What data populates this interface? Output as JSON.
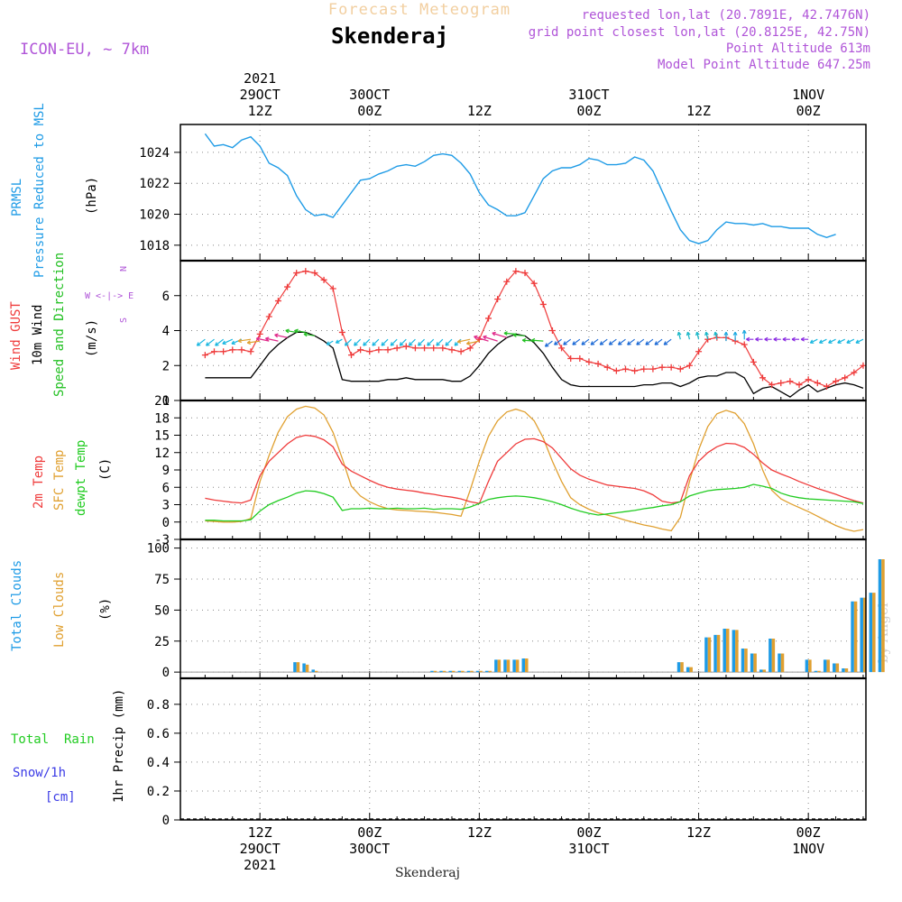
{
  "header": {
    "title": "Forecast Meteogram",
    "location": "Skenderaj",
    "model": "ICON-EU, ~ 7km",
    "requested": "requested lon,lat (20.7891E, 42.7476N)",
    "gridpoint": "grid point closest lon,lat (20.8125E, 42.75N)",
    "point_alt": "Point Altitude 613m",
    "model_alt": "Model Point Altitude 647.25m",
    "footer_location": "Skenderaj",
    "credit": "by Angel"
  },
  "colors": {
    "pressure": "#1e9be6",
    "gust": "#ef3b3b",
    "wind": "#000000",
    "dir": "#22c022",
    "temp": "#ef3b3b",
    "sfc": "#e0a030",
    "dew": "#22cc22",
    "total_cloud": "#1e9be6",
    "low_cloud": "#e0a030",
    "purple": "#b055d8",
    "rain": "#22cc22",
    "snow": "#3b3be6"
  },
  "time_axis": {
    "top_labels": [
      {
        "t": 6,
        "lines": [
          "2021",
          "29OCT",
          "12Z"
        ]
      },
      {
        "t": 18,
        "lines": [
          "30OCT",
          "00Z"
        ]
      },
      {
        "t": 30,
        "lines": [
          "12Z"
        ]
      },
      {
        "t": 42,
        "lines": [
          "31OCT",
          "00Z"
        ]
      },
      {
        "t": 54,
        "lines": [
          "12Z"
        ]
      },
      {
        "t": 66,
        "lines": [
          "1NOV",
          "00Z"
        ]
      }
    ],
    "bottom_labels": [
      {
        "t": 6,
        "lines": [
          "12Z",
          "29OCT",
          "2021"
        ]
      },
      {
        "t": 18,
        "lines": [
          "00Z",
          "30OCT"
        ]
      },
      {
        "t": 30,
        "lines": [
          "12Z"
        ]
      },
      {
        "t": 42,
        "lines": [
          "00Z",
          "31OCT"
        ]
      },
      {
        "t": 54,
        "lines": [
          "12Z"
        ]
      },
      {
        "t": 66,
        "lines": [
          "00Z",
          "1NOV"
        ]
      }
    ],
    "grid_hours": [
      6,
      18,
      30,
      42,
      54,
      66
    ]
  },
  "labels": {
    "pressure": [
      "PRMSL",
      "Pressure Reduced to MSL"
    ],
    "pressure_unit": "(hPa)",
    "gust": "Wind GUST",
    "wind": "10m Wind",
    "dir": "Speed and Direction",
    "wind_unit": "(m/s)",
    "compass": [
      "N",
      "W <-|-> E",
      "S"
    ],
    "temp": "2m Temp",
    "sfc": "SFC Temp",
    "dew": "dewpt Temp",
    "temp_unit": "(C)",
    "total_cloud": "Total Clouds",
    "low_cloud": "Low Clouds",
    "cloud_unit": "(%)",
    "rain_total": "Total  Rain",
    "snow": "Snow/1h",
    "snow_unit": "[cm]",
    "precip_unit": "1hr Precip (mm)"
  },
  "chart_data": [
    {
      "type": "line",
      "title": "PRMSL Pressure Reduced to MSL",
      "ylabel": "(hPa)",
      "ylim": [
        1017,
        1025.8
      ],
      "yticks": [
        1018,
        1020,
        1022,
        1024
      ],
      "t_start": 0,
      "t_step": 1,
      "series": [
        {
          "name": "PRMSL",
          "values": [
            1025.2,
            1024.4,
            1024.5,
            1024.3,
            1024.8,
            1025.0,
            1024.4,
            1023.3,
            1023.0,
            1022.5,
            1021.2,
            1020.3,
            1019.9,
            1020.0,
            1019.8,
            1020.6,
            1021.4,
            1022.2,
            1022.3,
            1022.6,
            1022.8,
            1023.1,
            1023.2,
            1023.1,
            1023.4,
            1023.8,
            1023.9,
            1023.8,
            1023.3,
            1022.6,
            1021.4,
            1020.6,
            1020.3,
            1019.9,
            1019.9,
            1020.1,
            1021.2,
            1022.3,
            1022.8,
            1023.0,
            1023.0,
            1023.2,
            1023.6,
            1023.5,
            1023.2,
            1023.2,
            1023.3,
            1023.7,
            1023.5,
            1022.8,
            1021.5,
            1020.2,
            1019.0,
            1018.3,
            1018.1,
            1018.3,
            1019.0,
            1019.5,
            1019.4,
            1019.4,
            1019.3,
            1019.4,
            1019.2,
            1019.2,
            1019.1,
            1019.1,
            1019.1,
            1018.7,
            1018.5,
            1018.7
          ]
        }
      ]
    },
    {
      "type": "line",
      "title": "Wind GUST / 10m Wind Speed and Direction",
      "ylabel": "(m/s)",
      "ylim": [
        0,
        8.0
      ],
      "yticks": [
        0,
        2,
        4,
        6
      ],
      "t_start": 0,
      "t_step": 1,
      "series": [
        {
          "name": "Wind GUST",
          "values": [
            2.6,
            2.8,
            2.8,
            2.9,
            2.9,
            2.8,
            3.8,
            4.8,
            5.7,
            6.5,
            7.3,
            7.4,
            7.3,
            6.9,
            6.4,
            3.9,
            2.6,
            2.9,
            2.8,
            2.9,
            2.9,
            3.0,
            3.1,
            3.0,
            3.0,
            3.0,
            3.0,
            2.9,
            2.8,
            3.0,
            3.5,
            4.7,
            5.8,
            6.8,
            7.4,
            7.3,
            6.7,
            5.5,
            4.0,
            3.0,
            2.4,
            2.4,
            2.2,
            2.1,
            1.9,
            1.7,
            1.8,
            1.7,
            1.8,
            1.8,
            1.9,
            1.9,
            1.8,
            2.0,
            2.8,
            3.5,
            3.6,
            3.6,
            3.4,
            3.2,
            2.2,
            1.3,
            0.9,
            1.0,
            1.1,
            0.9,
            1.2,
            1.0,
            0.8,
            1.1,
            1.3,
            1.6,
            2.0
          ]
        },
        {
          "name": "10m Wind",
          "values": [
            1.3,
            1.3,
            1.3,
            1.3,
            1.3,
            1.3,
            2.0,
            2.7,
            3.2,
            3.6,
            3.9,
            3.9,
            3.7,
            3.4,
            3.0,
            1.2,
            1.1,
            1.1,
            1.1,
            1.1,
            1.2,
            1.2,
            1.3,
            1.2,
            1.2,
            1.2,
            1.2,
            1.1,
            1.1,
            1.4,
            2.0,
            2.7,
            3.2,
            3.6,
            3.8,
            3.7,
            3.3,
            2.7,
            1.9,
            1.2,
            0.9,
            0.8,
            0.8,
            0.8,
            0.8,
            0.8,
            0.8,
            0.8,
            0.9,
            0.9,
            1.0,
            1.0,
            0.8,
            1.0,
            1.3,
            1.4,
            1.4,
            1.6,
            1.6,
            1.3,
            0.4,
            0.7,
            0.8,
            0.5,
            0.2,
            0.6,
            0.9,
            0.5,
            0.7,
            0.9,
            1.0,
            0.9,
            0.7
          ]
        }
      ]
    },
    {
      "type": "line",
      "title": "2m Temp / SFC Temp / dewpt Temp",
      "ylabel": "(C)",
      "ylim": [
        -3,
        21
      ],
      "yticks": [
        -3,
        0,
        3,
        6,
        9,
        12,
        15,
        18,
        21
      ],
      "t_start": 0,
      "t_step": 1,
      "series": [
        {
          "name": "2m Temp",
          "values": [
            4.1,
            3.8,
            3.6,
            3.4,
            3.3,
            3.8,
            8.0,
            10.5,
            12.0,
            13.5,
            14.6,
            15.0,
            14.8,
            14.2,
            13.0,
            10.0,
            8.8,
            8.0,
            7.2,
            6.5,
            6.0,
            5.7,
            5.5,
            5.3,
            5.0,
            4.8,
            4.5,
            4.3,
            4.0,
            3.5,
            3.2,
            7.0,
            10.5,
            12.0,
            13.5,
            14.3,
            14.4,
            13.9,
            12.8,
            11.0,
            9.2,
            8.1,
            7.4,
            6.9,
            6.4,
            6.2,
            6.0,
            5.8,
            5.4,
            4.7,
            3.6,
            3.3,
            3.5,
            8.0,
            10.5,
            12.0,
            13.0,
            13.6,
            13.5,
            12.9,
            11.7,
            10.2,
            9.0,
            8.3,
            7.7,
            7.0,
            6.4,
            5.8,
            5.3,
            4.8,
            4.2,
            3.7,
            3.3
          ]
        },
        {
          "name": "SFC Temp",
          "values": [
            0.2,
            0.1,
            0.0,
            0.0,
            0.1,
            0.6,
            7.0,
            11.5,
            15.5,
            18.2,
            19.5,
            20.0,
            19.7,
            18.5,
            15.5,
            11.0,
            6.2,
            4.5,
            3.5,
            2.8,
            2.3,
            2.1,
            2.0,
            1.9,
            1.8,
            1.7,
            1.5,
            1.3,
            1.0,
            5.5,
            10.5,
            14.8,
            17.5,
            19.0,
            19.5,
            19.0,
            17.5,
            14.5,
            10.5,
            7.0,
            4.2,
            3.0,
            2.2,
            1.6,
            1.2,
            0.8,
            0.3,
            -0.1,
            -0.5,
            -0.8,
            -1.2,
            -1.5,
            0.8,
            7.0,
            12.5,
            16.5,
            18.7,
            19.3,
            18.8,
            17.0,
            13.5,
            9.0,
            5.5,
            4.0,
            3.2,
            2.5,
            1.8,
            1.0,
            0.2,
            -0.6,
            -1.2,
            -1.6,
            -1.3
          ]
        },
        {
          "name": "dewpt Temp",
          "values": [
            0.3,
            0.3,
            0.2,
            0.2,
            0.2,
            0.4,
            1.9,
            3.0,
            3.7,
            4.3,
            5.0,
            5.4,
            5.3,
            4.9,
            4.3,
            2.0,
            2.3,
            2.3,
            2.4,
            2.3,
            2.3,
            2.4,
            2.3,
            2.3,
            2.4,
            2.2,
            2.3,
            2.3,
            2.2,
            2.6,
            3.2,
            3.9,
            4.2,
            4.4,
            4.5,
            4.4,
            4.2,
            3.9,
            3.5,
            3.0,
            2.4,
            1.9,
            1.5,
            1.2,
            1.4,
            1.6,
            1.8,
            2.0,
            2.3,
            2.5,
            2.8,
            3.0,
            3.5,
            4.5,
            5.0,
            5.4,
            5.6,
            5.7,
            5.8,
            6.0,
            6.5,
            6.2,
            5.8,
            5.0,
            4.5,
            4.2,
            4.0,
            3.9,
            3.8,
            3.7,
            3.6,
            3.5,
            3.2
          ]
        }
      ]
    },
    {
      "type": "bar",
      "title": "Total Clouds / Low Clouds",
      "ylabel": "(%)",
      "ylim": [
        -5,
        107
      ],
      "yticks": [
        0,
        25,
        50,
        75,
        100
      ],
      "t_start": 0,
      "t_step": 1,
      "series": [
        {
          "name": "Total Clouds",
          "values": [
            0,
            0,
            0,
            0,
            0,
            0,
            0,
            0,
            0,
            0,
            8,
            7,
            2,
            0,
            0,
            0,
            0,
            0,
            0,
            0,
            0,
            0,
            0,
            0,
            0,
            1,
            1,
            1,
            1,
            1,
            1,
            1,
            10,
            10,
            10,
            11,
            0,
            0,
            0,
            0,
            0,
            0,
            0,
            0,
            0,
            0,
            0,
            0,
            0,
            0,
            0,
            0,
            8,
            4,
            0,
            28,
            30,
            35,
            34,
            19,
            15,
            2,
            27,
            15,
            0,
            0,
            10,
            1,
            10,
            7,
            3,
            57,
            60,
            64,
            91
          ]
        },
        {
          "name": "Low Clouds",
          "values": [
            0,
            0,
            0,
            0,
            0,
            0,
            0,
            0,
            0,
            0,
            8,
            6,
            1,
            0,
            0,
            0,
            0,
            0,
            0,
            0,
            0,
            0,
            0,
            0,
            0,
            1,
            1,
            1,
            1,
            1,
            1,
            1,
            10,
            10,
            10,
            11,
            0,
            0,
            0,
            0,
            0,
            0,
            0,
            0,
            0,
            0,
            0,
            0,
            0,
            0,
            0,
            0,
            8,
            4,
            0,
            28,
            30,
            35,
            34,
            19,
            15,
            2,
            27,
            15,
            0,
            0,
            10,
            1,
            10,
            7,
            3,
            57,
            60,
            64,
            91
          ]
        }
      ]
    },
    {
      "type": "bar",
      "title": "1hr Precip",
      "ylabel": "1hr Precip (mm)",
      "ylim": [
        0,
        0.98
      ],
      "yticks": [
        0,
        0.2,
        0.4,
        0.6,
        0.8
      ],
      "t_start": 0,
      "t_step": 1,
      "series": [
        {
          "name": "Total Rain",
          "values": []
        },
        {
          "name": "Snow/1h",
          "values": []
        }
      ]
    }
  ]
}
